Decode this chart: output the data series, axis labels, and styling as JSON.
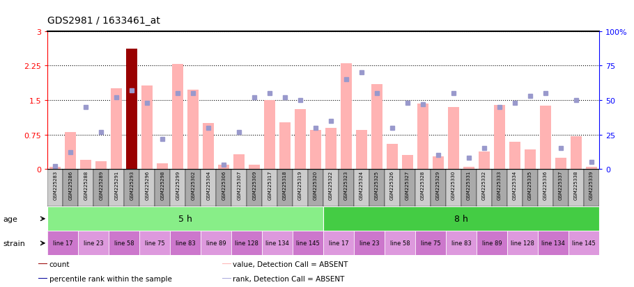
{
  "title": "GDS2981 / 1633461_at",
  "samples": [
    "GSM225283",
    "GSM225286",
    "GSM225288",
    "GSM225289",
    "GSM225291",
    "GSM225293",
    "GSM225296",
    "GSM225298",
    "GSM225299",
    "GSM225302",
    "GSM225304",
    "GSM225306",
    "GSM225307",
    "GSM225309",
    "GSM225317",
    "GSM225318",
    "GSM225319",
    "GSM225320",
    "GSM225322",
    "GSM225323",
    "GSM225324",
    "GSM225325",
    "GSM225326",
    "GSM225327",
    "GSM225328",
    "GSM225329",
    "GSM225330",
    "GSM225331",
    "GSM225332",
    "GSM225333",
    "GSM225334",
    "GSM225335",
    "GSM225336",
    "GSM225337",
    "GSM225338",
    "GSM225339"
  ],
  "bar_values": [
    0.05,
    0.8,
    0.2,
    0.17,
    1.75,
    2.62,
    1.82,
    0.12,
    2.28,
    1.72,
    1.0,
    0.1,
    0.32,
    0.1,
    1.5,
    1.02,
    1.3,
    0.85,
    0.9,
    2.3,
    0.85,
    1.85,
    0.55,
    0.3,
    1.42,
    0.28,
    1.35,
    0.05,
    0.38,
    1.4,
    0.6,
    0.42,
    1.38,
    0.25,
    0.72,
    0.05
  ],
  "bar_is_dark": [
    false,
    false,
    false,
    false,
    false,
    true,
    false,
    false,
    false,
    false,
    false,
    false,
    false,
    false,
    false,
    false,
    false,
    false,
    false,
    false,
    false,
    false,
    false,
    false,
    false,
    false,
    false,
    false,
    false,
    false,
    false,
    false,
    false,
    false,
    false,
    false
  ],
  "rank_values": [
    2,
    12,
    45,
    27,
    52,
    57,
    48,
    22,
    55,
    55,
    30,
    3,
    27,
    52,
    55,
    52,
    50,
    30,
    35,
    65,
    70,
    55,
    30,
    48,
    47,
    10,
    55,
    8,
    15,
    45,
    48,
    53,
    55,
    15,
    50,
    5
  ],
  "bar_color_normal": "#ffb3b3",
  "bar_color_dark": "#990000",
  "rank_dot_color": "#9999cc",
  "ylim_left": [
    0,
    3
  ],
  "ylim_right": [
    0,
    100
  ],
  "yticks_left": [
    0,
    0.75,
    1.5,
    2.25,
    3.0
  ],
  "ytick_labels_left": [
    "0",
    "0.75",
    "1.5",
    "2.25",
    "3"
  ],
  "ytick_labels_right": [
    "0",
    "25",
    "50",
    "75",
    "100%"
  ],
  "age_groups": [
    {
      "label": "5 h",
      "start": 0,
      "end": 18,
      "color": "#88ee88"
    },
    {
      "label": "8 h",
      "start": 18,
      "end": 36,
      "color": "#44cc44"
    }
  ],
  "strain_groups": [
    {
      "label": "line 17",
      "start": 0,
      "end": 2
    },
    {
      "label": "line 23",
      "start": 2,
      "end": 4
    },
    {
      "label": "line 58",
      "start": 4,
      "end": 6
    },
    {
      "label": "line 75",
      "start": 6,
      "end": 8
    },
    {
      "label": "line 83",
      "start": 8,
      "end": 10
    },
    {
      "label": "line 89",
      "start": 10,
      "end": 12
    },
    {
      "label": "line 128",
      "start": 12,
      "end": 14
    },
    {
      "label": "line 134",
      "start": 14,
      "end": 16
    },
    {
      "label": "line 145",
      "start": 16,
      "end": 18
    },
    {
      "label": "line 17",
      "start": 18,
      "end": 20
    },
    {
      "label": "line 23",
      "start": 20,
      "end": 22
    },
    {
      "label": "line 58",
      "start": 22,
      "end": 24
    },
    {
      "label": "line 75",
      "start": 24,
      "end": 26
    },
    {
      "label": "line 83",
      "start": 26,
      "end": 28
    },
    {
      "label": "line 89",
      "start": 28,
      "end": 30
    },
    {
      "label": "line 128",
      "start": 30,
      "end": 32
    },
    {
      "label": "line 134",
      "start": 32,
      "end": 34
    },
    {
      "label": "line 145",
      "start": 34,
      "end": 36
    }
  ],
  "legend_items": [
    {
      "label": "count",
      "color": "#990000"
    },
    {
      "label": "percentile rank within the sample",
      "color": "#000099"
    },
    {
      "label": "value, Detection Call = ABSENT",
      "color": "#ffb3b3"
    },
    {
      "label": "rank, Detection Call = ABSENT",
      "color": "#aaaadd"
    }
  ]
}
